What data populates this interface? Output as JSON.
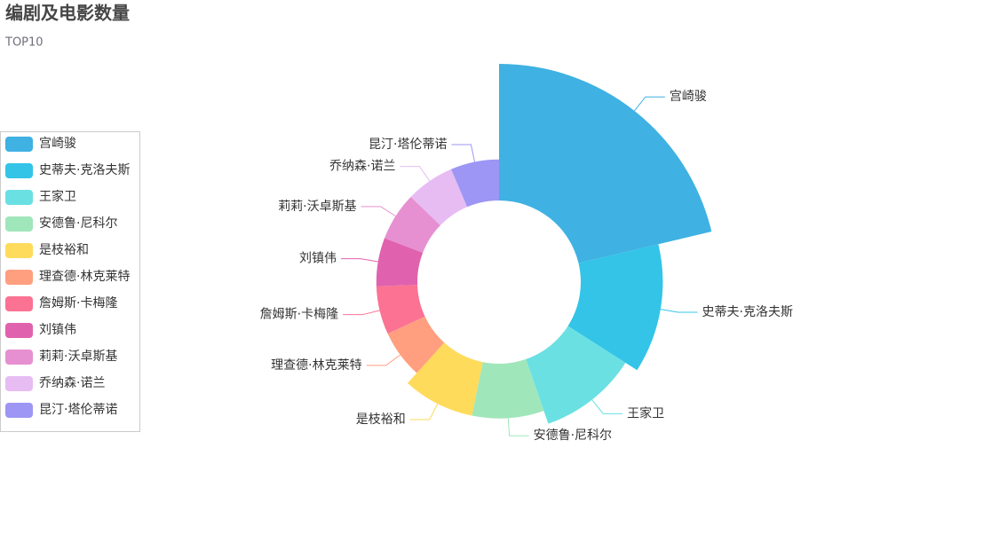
{
  "chart_data": {
    "type": "pie",
    "rose": true,
    "title": "编剧及电影数量",
    "subtitle": "TOP10",
    "categories": [
      "宫崎骏",
      "史蒂夫·克洛夫斯",
      "王家卫",
      "安德鲁·尼科尔",
      "是枝裕和",
      "理查德·林克莱特",
      "詹姆斯·卡梅隆",
      "刘镇伟",
      "莉莉·沃卓斯基",
      "乔纳森·诺兰",
      "昆汀·塔伦蒂诺"
    ],
    "values": [
      10,
      6,
      5,
      4,
      4,
      3,
      3,
      3,
      3,
      3,
      3
    ],
    "colors": [
      "#3fb1e3",
      "#33c4e8",
      "#6ae0e3",
      "#a0e6bb",
      "#fedb5b",
      "#ff9f7f",
      "#fb7293",
      "#e062ae",
      "#e690d1",
      "#e7bcf3",
      "#9d96f5"
    ],
    "legend": "left"
  }
}
